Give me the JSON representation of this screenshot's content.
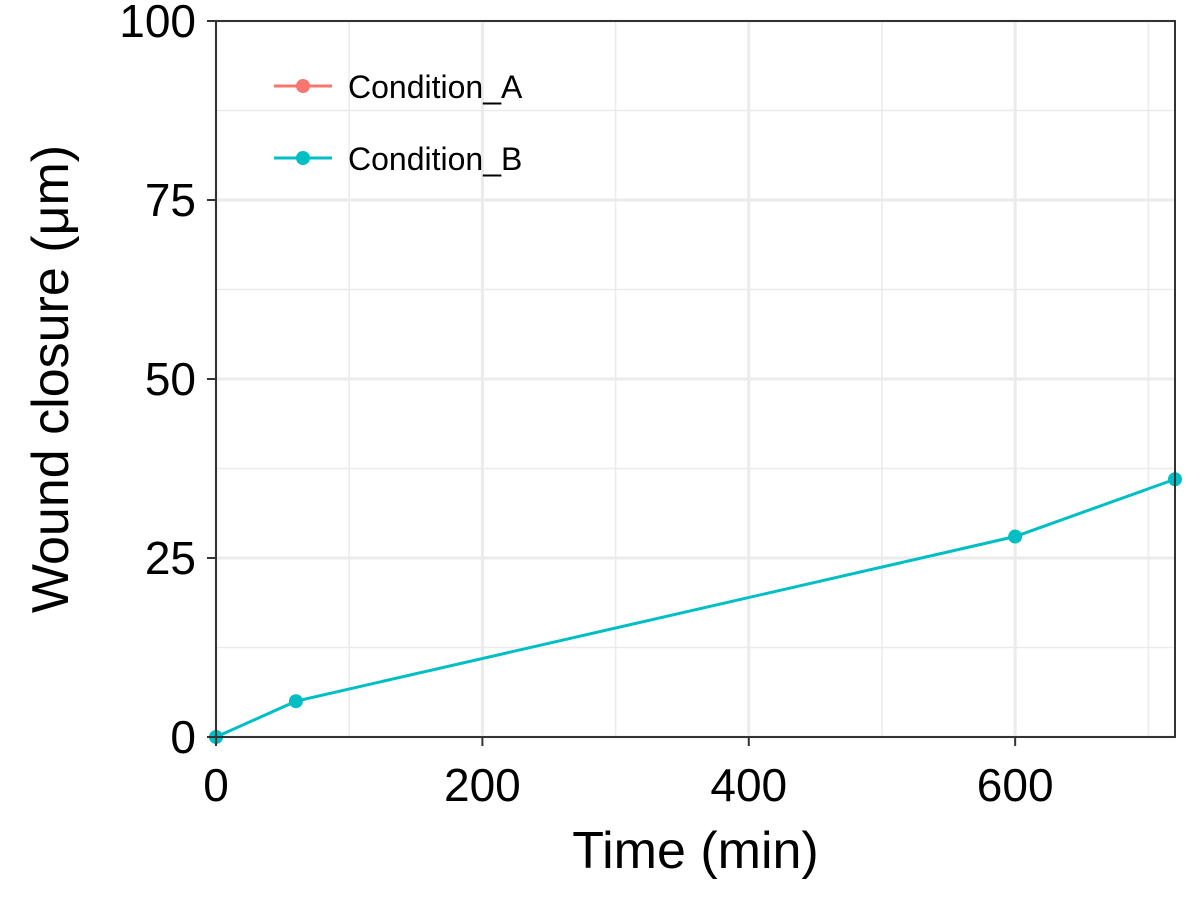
{
  "chart_data": {
    "type": "line",
    "xlabel": "Time (min)",
    "ylabel": "Wound closure (μm)",
    "xlim": [
      0,
      720
    ],
    "ylim": [
      0,
      100
    ],
    "x_ticks": [
      0,
      200,
      400,
      600
    ],
    "y_ticks": [
      0,
      25,
      50,
      75,
      100
    ],
    "x_tick_labels": [
      "0",
      "200",
      "400",
      "600"
    ],
    "y_tick_labels": [
      "0",
      "25",
      "50",
      "75",
      "100"
    ],
    "grid": true,
    "legend_position": "top-left",
    "series": [
      {
        "name": "Condition_A",
        "color": "#F8766D",
        "x": [],
        "y": []
      },
      {
        "name": "Condition_B",
        "color": "#00BFC4",
        "x": [
          0,
          60,
          600,
          720
        ],
        "y": [
          0,
          5,
          28,
          36
        ]
      }
    ]
  }
}
